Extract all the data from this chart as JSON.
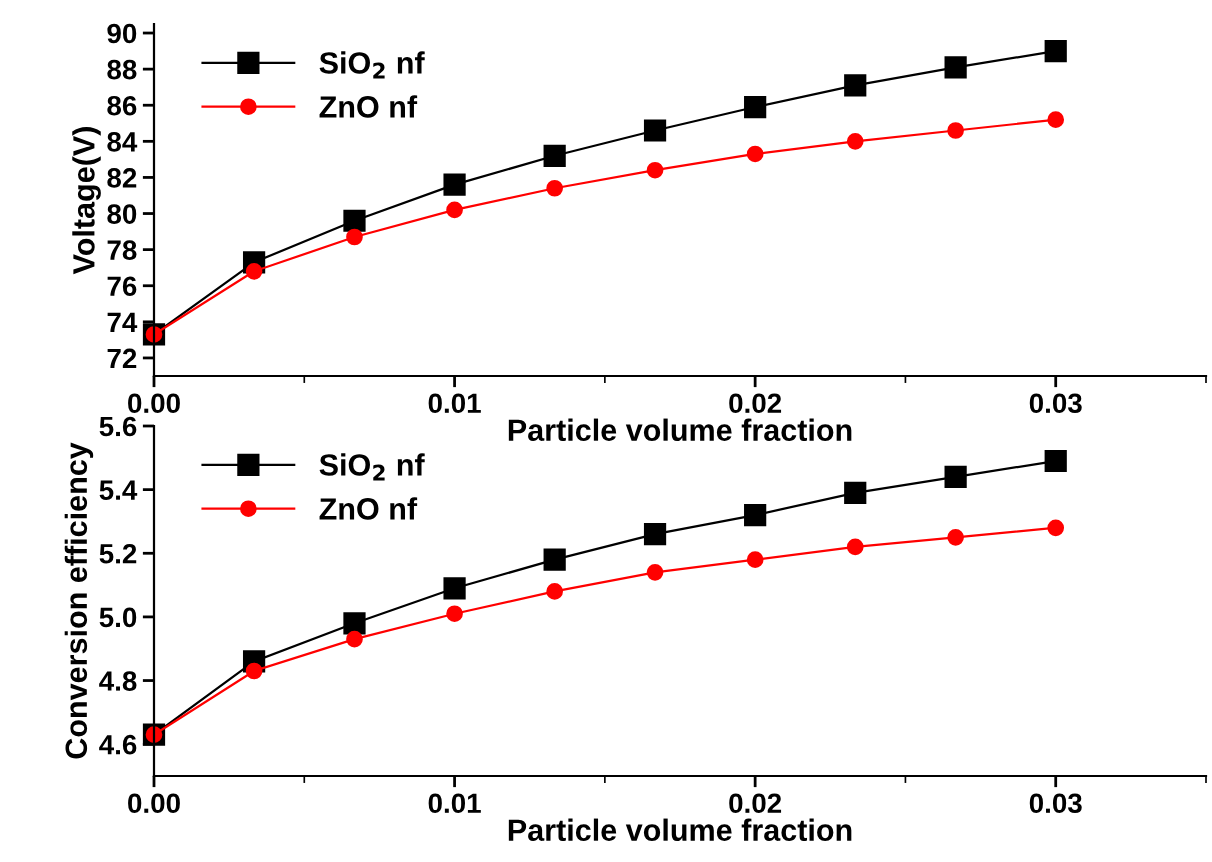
{
  "chart_data": [
    {
      "type": "line",
      "xlabel": "Particle volume fraction",
      "ylabel": "Voltage(V)",
      "x": [
        0,
        0.00333,
        0.00667,
        0.01,
        0.01333,
        0.01667,
        0.02,
        0.02333,
        0.02667,
        0.03
      ],
      "xlim": [
        0,
        0.035
      ],
      "xticks": [
        {
          "value": 0,
          "label": "0.00"
        },
        0.01,
        0.02,
        0.03
      ],
      "ylim": [
        71,
        90.5
      ],
      "yticks": [
        72,
        74,
        76,
        78,
        80,
        82,
        84,
        86,
        88,
        90
      ],
      "legend": "top left",
      "series": [
        {
          "name": "SiO$_{2}$ nf",
          "color": "#000000",
          "marker": "square",
          "values": [
            73.3,
            77.3,
            79.6,
            81.6,
            83.2,
            84.6,
            85.9,
            87.1,
            88.1,
            89.0
          ]
        },
        {
          "name": "ZnO nf",
          "color": "#ff0000",
          "marker": "circle",
          "values": [
            73.3,
            76.8,
            78.7,
            80.2,
            81.4,
            82.4,
            83.3,
            84.0,
            84.6,
            85.2
          ]
        }
      ]
    },
    {
      "type": "line",
      "xlabel": "Particle volume fraction",
      "ylabel": "Conversion efficiency",
      "x": [
        0,
        0.00333,
        0.00667,
        0.01,
        0.01333,
        0.01667,
        0.02,
        0.02333,
        0.02667,
        0.03
      ],
      "xlim": [
        0,
        0.035
      ],
      "xticks": [
        {
          "value": 0,
          "label": "0.00"
        },
        0.01,
        0.02,
        0.03
      ],
      "ylim": [
        4.5,
        5.6
      ],
      "yticks": [
        {
          "value": 4.6,
          "label": "4.6"
        },
        {
          "value": 4.8,
          "label": "4.8"
        },
        {
          "value": 5.0,
          "label": "5.0"
        },
        {
          "value": 5.2,
          "label": "5.2"
        },
        {
          "value": 5.4,
          "label": "5.4"
        },
        {
          "value": 5.6,
          "label": "5.6"
        }
      ],
      "legend": "top left",
      "series": [
        {
          "name": "SiO$_{2}$ nf",
          "color": "#000000",
          "marker": "square",
          "values": [
            4.63,
            4.86,
            4.98,
            5.09,
            5.18,
            5.26,
            5.32,
            5.39,
            5.44,
            5.49
          ]
        },
        {
          "name": "ZnO nf",
          "color": "#ff0000",
          "marker": "circle",
          "values": [
            4.63,
            4.83,
            4.93,
            5.01,
            5.08,
            5.14,
            5.18,
            5.22,
            5.25,
            5.28
          ]
        }
      ]
    }
  ]
}
